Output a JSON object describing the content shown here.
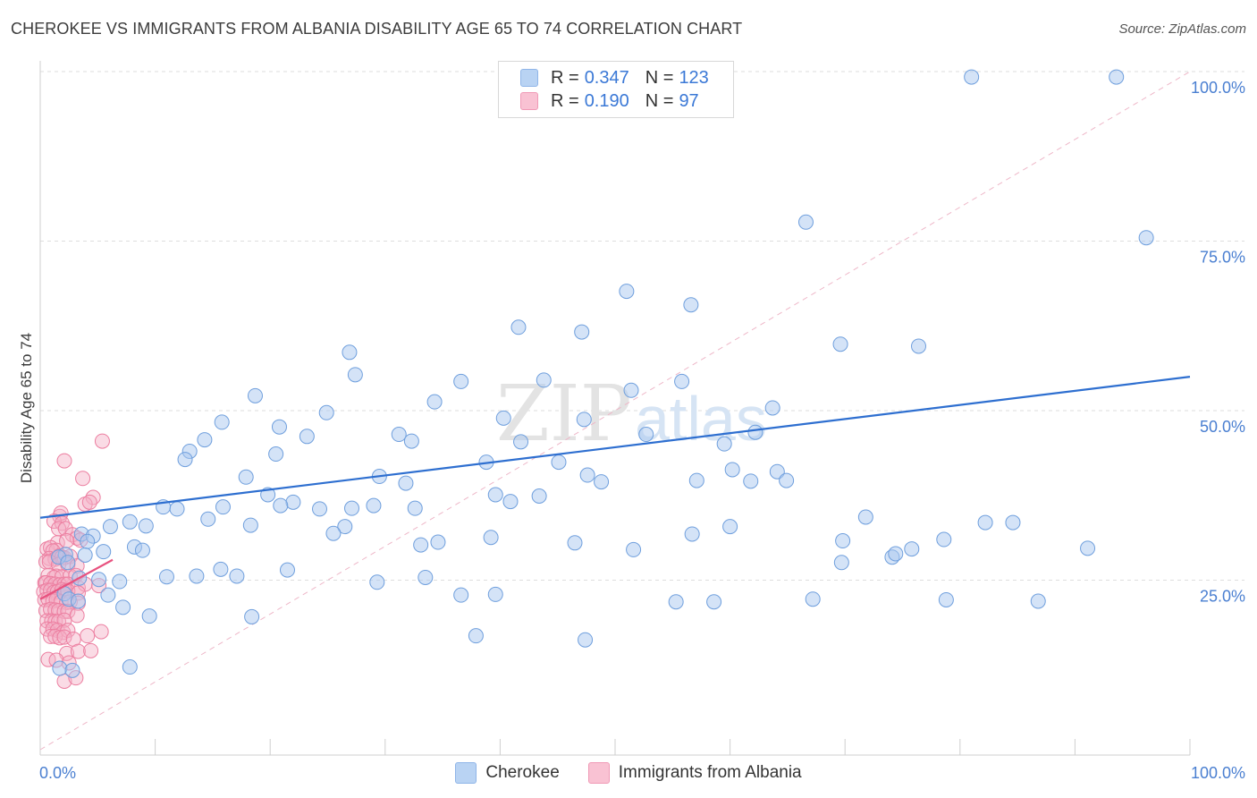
{
  "header": {
    "title": "CHEROKEE VS IMMIGRANTS FROM ALBANIA DISABILITY AGE 65 TO 74 CORRELATION CHART",
    "source": "Source: ZipAtlas.com"
  },
  "legend": {
    "items": [
      {
        "r_label": "R =",
        "r_value": "0.347",
        "n_label": "N =",
        "n_value": "123"
      },
      {
        "r_label": "R =",
        "r_value": "0.190",
        "n_label": "N =",
        "n_value": "97"
      }
    ]
  },
  "watermark": {
    "zip": "ZIP",
    "atlas": "atlas"
  },
  "colors": {
    "blue_fill": "#a9c8f0",
    "blue_stroke": "#6f9fdd",
    "blue_line": "#2e6fd0",
    "pink_fill": "#f5b0c6",
    "pink_stroke": "#ec7ea0",
    "pink_line": "#e8527f",
    "axis_text": "#4a7fd1",
    "grid": "#dedede"
  },
  "chart_data": {
    "type": "scatter",
    "title": "CHEROKEE VS IMMIGRANTS FROM ALBANIA DISABILITY AGE 65 TO 74 CORRELATION CHART",
    "xlabel": "",
    "ylabel": "Disability Age 65 to 74",
    "xlim": [
      0,
      100
    ],
    "ylim": [
      0,
      100
    ],
    "x_tick_labels": [
      "0.0%",
      "100.0%"
    ],
    "y_tick_labels": [
      "25.0%",
      "50.0%",
      "75.0%",
      "100.0%"
    ],
    "y_ticks": [
      25,
      50,
      75,
      100
    ],
    "legend_position": "top-center",
    "reference_line": {
      "style": "dashed",
      "x": [
        0,
        100
      ],
      "y": [
        0,
        100
      ]
    },
    "series": [
      {
        "name": "Cherokee",
        "color": "blue",
        "R": 0.347,
        "N": 123,
        "trend": {
          "x": [
            0,
            100
          ],
          "y": [
            34.2,
            55.0
          ]
        },
        "points": [
          [
            81,
            99.2
          ],
          [
            93.6,
            99.2
          ],
          [
            66.6,
            77.8
          ],
          [
            96.2,
            75.5
          ],
          [
            51,
            67.6
          ],
          [
            56.6,
            65.6
          ],
          [
            41.6,
            62.3
          ],
          [
            47.1,
            61.6
          ],
          [
            69.6,
            59.8
          ],
          [
            76.4,
            59.5
          ],
          [
            26.9,
            58.6
          ],
          [
            27.4,
            55.3
          ],
          [
            36.6,
            54.3
          ],
          [
            43.8,
            54.5
          ],
          [
            55.8,
            54.3
          ],
          [
            51.4,
            53
          ],
          [
            18.7,
            52.2
          ],
          [
            34.3,
            51.3
          ],
          [
            63.7,
            50.4
          ],
          [
            24.9,
            49.7
          ],
          [
            40.3,
            48.9
          ],
          [
            47.3,
            48.7
          ],
          [
            15.8,
            48.3
          ],
          [
            20.8,
            47.6
          ],
          [
            31.2,
            46.5
          ],
          [
            23.2,
            46.2
          ],
          [
            52.7,
            46.5
          ],
          [
            62.2,
            46.8
          ],
          [
            32.3,
            45.5
          ],
          [
            41.8,
            45.4
          ],
          [
            59.5,
            45.1
          ],
          [
            14.3,
            45.7
          ],
          [
            13,
            44
          ],
          [
            20.5,
            43.6
          ],
          [
            12.6,
            42.8
          ],
          [
            38.8,
            42.4
          ],
          [
            45.1,
            42.4
          ],
          [
            60.2,
            41.3
          ],
          [
            64.1,
            41
          ],
          [
            47.6,
            40.5
          ],
          [
            17.9,
            40.2
          ],
          [
            29.5,
            40.3
          ],
          [
            61.8,
            39.6
          ],
          [
            48.8,
            39.5
          ],
          [
            31.8,
            39.3
          ],
          [
            64.9,
            39.7
          ],
          [
            57.1,
            39.7
          ],
          [
            19.8,
            37.6
          ],
          [
            39.6,
            37.6
          ],
          [
            43.4,
            37.4
          ],
          [
            22,
            36.5
          ],
          [
            20.9,
            36
          ],
          [
            15.9,
            35.8
          ],
          [
            27.1,
            35.6
          ],
          [
            24.3,
            35.5
          ],
          [
            29,
            36
          ],
          [
            32.6,
            35.6
          ],
          [
            40.9,
            36.6
          ],
          [
            10.7,
            35.8
          ],
          [
            11.9,
            35.5
          ],
          [
            14.6,
            34
          ],
          [
            18.3,
            33.1
          ],
          [
            9.2,
            33
          ],
          [
            26.5,
            32.9
          ],
          [
            25.5,
            31.9
          ],
          [
            39.2,
            31.3
          ],
          [
            34.6,
            30.6
          ],
          [
            33.1,
            30.2
          ],
          [
            46.5,
            30.5
          ],
          [
            51.6,
            29.5
          ],
          [
            71.8,
            34.3
          ],
          [
            60,
            32.9
          ],
          [
            56.7,
            31.8
          ],
          [
            69.8,
            30.8
          ],
          [
            78.6,
            31
          ],
          [
            82.2,
            33.5
          ],
          [
            84.6,
            33.5
          ],
          [
            74.1,
            28.4
          ],
          [
            74.4,
            28.9
          ],
          [
            69.7,
            27.6
          ],
          [
            75.8,
            29.6
          ],
          [
            91.1,
            29.7
          ],
          [
            7.8,
            33.6
          ],
          [
            6.1,
            32.9
          ],
          [
            3.6,
            31.8
          ],
          [
            4.6,
            31.5
          ],
          [
            4.1,
            30.7
          ],
          [
            8.2,
            29.9
          ],
          [
            8.9,
            29.4
          ],
          [
            5.5,
            29.2
          ],
          [
            2.2,
            28.8
          ],
          [
            3.9,
            28.7
          ],
          [
            1.6,
            28.4
          ],
          [
            2.4,
            27.6
          ],
          [
            15.7,
            26.6
          ],
          [
            13.6,
            25.6
          ],
          [
            17.1,
            25.6
          ],
          [
            5.1,
            25.1
          ],
          [
            3.4,
            25.3
          ],
          [
            11,
            25.5
          ],
          [
            6.9,
            24.8
          ],
          [
            2.1,
            23
          ],
          [
            2.5,
            22.2
          ],
          [
            5.9,
            22.8
          ],
          [
            3.3,
            21.9
          ],
          [
            7.2,
            21
          ],
          [
            21.5,
            26.5
          ],
          [
            33.5,
            25.4
          ],
          [
            29.3,
            24.7
          ],
          [
            67.2,
            22.2
          ],
          [
            78.8,
            22.1
          ],
          [
            86.8,
            21.9
          ],
          [
            39.6,
            22.9
          ],
          [
            36.6,
            22.8
          ],
          [
            55.3,
            21.8
          ],
          [
            58.6,
            21.8
          ],
          [
            9.5,
            19.7
          ],
          [
            18.4,
            19.6
          ],
          [
            1.7,
            12
          ],
          [
            2.8,
            11.7
          ],
          [
            7.8,
            12.2
          ],
          [
            37.9,
            16.8
          ],
          [
            47.4,
            16.2
          ]
        ]
      },
      {
        "name": "Immigrants from Albania",
        "color": "pink",
        "R": 0.19,
        "N": 97,
        "trend": {
          "x": [
            0,
            6.3
          ],
          "y": [
            22.2,
            28
          ]
        },
        "points": [
          [
            5.4,
            45.5
          ],
          [
            2.1,
            42.6
          ],
          [
            3.7,
            40
          ],
          [
            4.6,
            37.2
          ],
          [
            3.9,
            36.2
          ],
          [
            4.3,
            36.5
          ],
          [
            1.7,
            34.4
          ],
          [
            1.8,
            34.9
          ],
          [
            1.2,
            33.7
          ],
          [
            1.9,
            33.4
          ],
          [
            1.6,
            32.6
          ],
          [
            2.2,
            32.6
          ],
          [
            2.8,
            31.7
          ],
          [
            3.2,
            31.2
          ],
          [
            1.5,
            30.5
          ],
          [
            2.3,
            30.8
          ],
          [
            3.5,
            30.9
          ],
          [
            0.6,
            29.6
          ],
          [
            0.9,
            29.8
          ],
          [
            1.4,
            29.4
          ],
          [
            1.1,
            29.3
          ],
          [
            0.8,
            28.2
          ],
          [
            1.3,
            28.1
          ],
          [
            1.7,
            28.6
          ],
          [
            1.9,
            28.4
          ],
          [
            2.1,
            28.3
          ],
          [
            2.6,
            28.5
          ],
          [
            0.5,
            27.7
          ],
          [
            0.8,
            27.7
          ],
          [
            1.6,
            27.3
          ],
          [
            2.4,
            27.3
          ],
          [
            3.2,
            27.1
          ],
          [
            0.7,
            25.7
          ],
          [
            1.4,
            25.6
          ],
          [
            1.2,
            25.4
          ],
          [
            1.9,
            25.5
          ],
          [
            2.6,
            25.6
          ],
          [
            3.1,
            25.7
          ],
          [
            0.4,
            24.6
          ],
          [
            0.5,
            24.6
          ],
          [
            0.9,
            24.5
          ],
          [
            1.3,
            24.4
          ],
          [
            1.7,
            24.3
          ],
          [
            2.1,
            24.4
          ],
          [
            2.4,
            24.4
          ],
          [
            3.3,
            23.9
          ],
          [
            3.9,
            24.4
          ],
          [
            5.1,
            24.2
          ],
          [
            0.3,
            23.3
          ],
          [
            0.6,
            23.5
          ],
          [
            0.9,
            23.5
          ],
          [
            1.2,
            23.2
          ],
          [
            1.5,
            23.3
          ],
          [
            1.9,
            23.6
          ],
          [
            2.2,
            23.4
          ],
          [
            2.4,
            23.4
          ],
          [
            3.3,
            23.1
          ],
          [
            0.4,
            22.1
          ],
          [
            0.7,
            22.2
          ],
          [
            1.1,
            21.9
          ],
          [
            1.4,
            22.1
          ],
          [
            1.8,
            21.8
          ],
          [
            2.3,
            21.7
          ],
          [
            2.6,
            21.8
          ],
          [
            3.3,
            21.6
          ],
          [
            0.5,
            20.5
          ],
          [
            0.9,
            20.7
          ],
          [
            1.3,
            20.6
          ],
          [
            1.6,
            20.5
          ],
          [
            2.1,
            20.4
          ],
          [
            2.4,
            20.4
          ],
          [
            3.2,
            19.8
          ],
          [
            0.6,
            19
          ],
          [
            1,
            19
          ],
          [
            1.3,
            18.9
          ],
          [
            1.6,
            18.9
          ],
          [
            2.1,
            19.1
          ],
          [
            0.6,
            17.8
          ],
          [
            1.1,
            17.8
          ],
          [
            1.5,
            17.6
          ],
          [
            2,
            17.3
          ],
          [
            2.4,
            17.6
          ],
          [
            0.9,
            16.7
          ],
          [
            1.3,
            16.7
          ],
          [
            1.7,
            16.5
          ],
          [
            2.1,
            16.6
          ],
          [
            2.9,
            16.3
          ],
          [
            4.1,
            16.8
          ],
          [
            5.3,
            17.4
          ],
          [
            2.3,
            14.2
          ],
          [
            3.3,
            14.5
          ],
          [
            4.4,
            14.6
          ],
          [
            0.7,
            13.3
          ],
          [
            1.4,
            13.2
          ],
          [
            2.5,
            12.8
          ],
          [
            2.1,
            10.1
          ],
          [
            3.1,
            10.6
          ]
        ]
      }
    ]
  }
}
